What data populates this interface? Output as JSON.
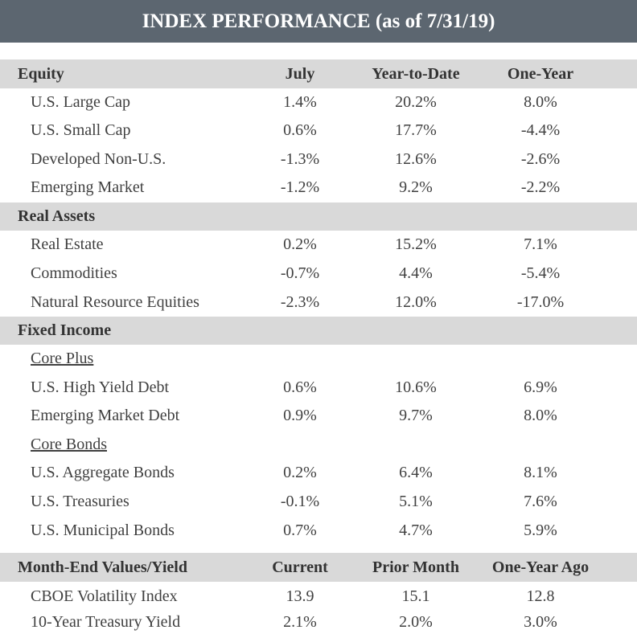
{
  "title": "INDEX PERFORMANCE (as of 7/31/19)",
  "equity": {
    "header": "Equity",
    "columns": [
      "July",
      "Year-to-Date",
      "One-Year"
    ],
    "rows": [
      {
        "label": "U.S. Large Cap",
        "july": "1.4%",
        "ytd": "20.2%",
        "one_year": "8.0%"
      },
      {
        "label": "U.S. Small Cap",
        "july": "0.6%",
        "ytd": "17.7%",
        "one_year": "-4.4%"
      },
      {
        "label": "Developed Non-U.S.",
        "july": "-1.3%",
        "ytd": "12.6%",
        "one_year": "-2.6%"
      },
      {
        "label": "Emerging Market",
        "july": "-1.2%",
        "ytd": "9.2%",
        "one_year": "-2.2%"
      }
    ]
  },
  "real_assets": {
    "header": "Real Assets",
    "rows": [
      {
        "label": "Real Estate",
        "july": "0.2%",
        "ytd": "15.2%",
        "one_year": "7.1%"
      },
      {
        "label": "Commodities",
        "july": "-0.7%",
        "ytd": "4.4%",
        "one_year": "-5.4%"
      },
      {
        "label": "Natural Resource Equities",
        "july": "-2.3%",
        "ytd": "12.0%",
        "one_year": "-17.0%"
      }
    ]
  },
  "fixed_income": {
    "header": "Fixed Income",
    "core_plus": {
      "label": "Core Plus",
      "rows": [
        {
          "label": "U.S. High Yield Debt",
          "july": "0.6%",
          "ytd": "10.6%",
          "one_year": "6.9%"
        },
        {
          "label": "Emerging Market Debt",
          "july": "0.9%",
          "ytd": "9.7%",
          "one_year": "8.0%"
        }
      ]
    },
    "core_bonds": {
      "label": "Core Bonds",
      "rows": [
        {
          "label": "U.S. Aggregate Bonds",
          "july": "0.2%",
          "ytd": "6.4%",
          "one_year": "8.1%"
        },
        {
          "label": "U.S. Treasuries",
          "july": "-0.1%",
          "ytd": "5.1%",
          "one_year": "7.6%"
        },
        {
          "label": "U.S. Municipal Bonds",
          "july": "0.7%",
          "ytd": "4.7%",
          "one_year": "5.9%"
        }
      ]
    }
  },
  "month_end": {
    "header": "Month-End Values/Yield",
    "columns": [
      "Current",
      "Prior Month",
      "One-Year Ago"
    ],
    "rows": [
      {
        "label": "CBOE Volatility Index",
        "current": "13.9",
        "prior": "15.1",
        "year_ago": "12.8"
      },
      {
        "label": "10-Year Treasury Yield",
        "current": "2.1%",
        "prior": "2.0%",
        "year_ago": "3.0%"
      }
    ]
  },
  "colors": {
    "banner": "#5c6670",
    "section_header": "#d9d9d9"
  }
}
